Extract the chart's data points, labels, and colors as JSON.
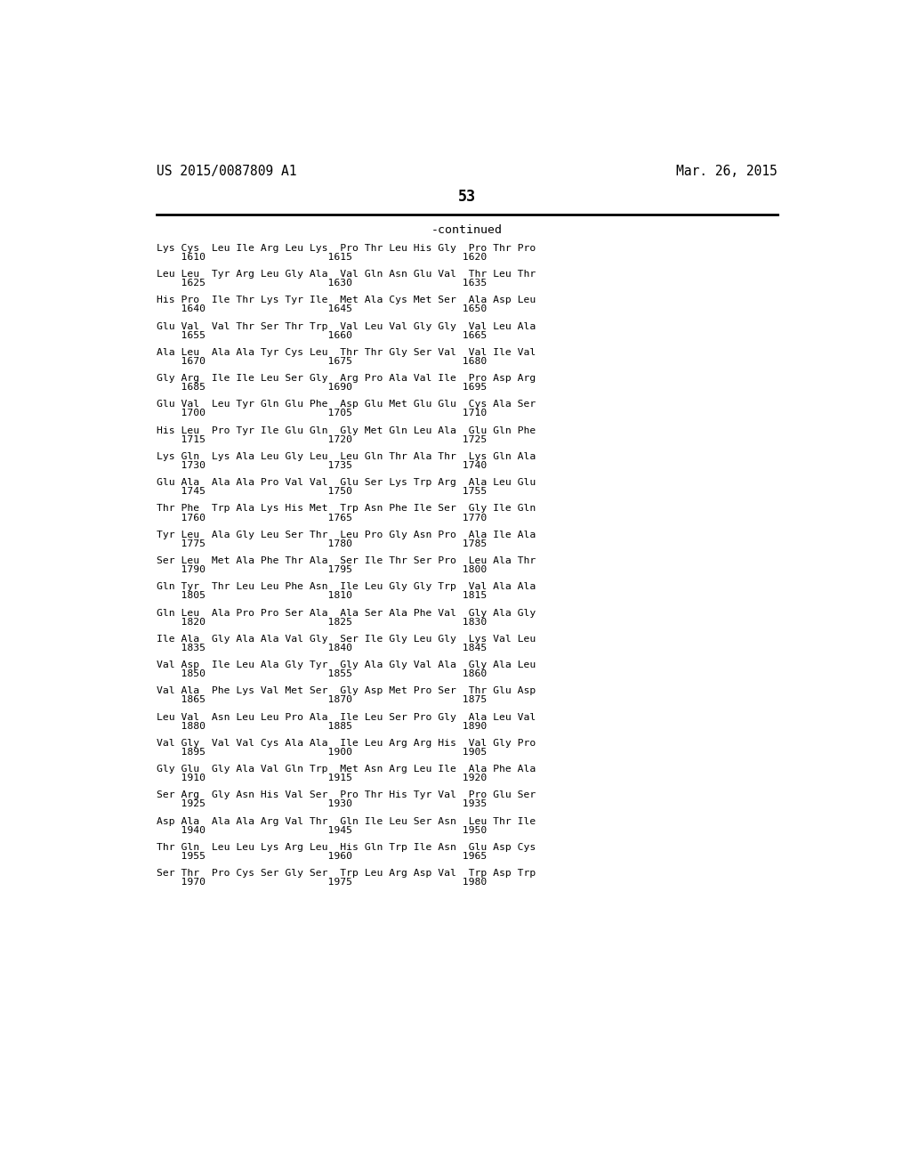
{
  "header_left": "US 2015/0087809 A1",
  "header_right": "Mar. 26, 2015",
  "page_number": "53",
  "continued_text": "-continued",
  "background_color": "#ffffff",
  "text_color": "#000000",
  "lines": [
    [
      "Lys Cys  Leu Ile Arg Leu Lys  Pro Thr Leu His Gly  Pro Thr Pro",
      "    1610                    1615                  1620"
    ],
    [
      "Leu Leu  Tyr Arg Leu Gly Ala  Val Gln Asn Glu Val  Thr Leu Thr",
      "    1625                    1630                  1635"
    ],
    [
      "His Pro  Ile Thr Lys Tyr Ile  Met Ala Cys Met Ser  Ala Asp Leu",
      "    1640                    1645                  1650"
    ],
    [
      "Glu Val  Val Thr Ser Thr Trp  Val Leu Val Gly Gly  Val Leu Ala",
      "    1655                    1660                  1665"
    ],
    [
      "Ala Leu  Ala Ala Tyr Cys Leu  Thr Thr Gly Ser Val  Val Ile Val",
      "    1670                    1675                  1680"
    ],
    [
      "Gly Arg  Ile Ile Leu Ser Gly  Arg Pro Ala Val Ile  Pro Asp Arg",
      "    1685                    1690                  1695"
    ],
    [
      "Glu Val  Leu Tyr Gln Glu Phe  Asp Glu Met Glu Glu  Cys Ala Ser",
      "    1700                    1705                  1710"
    ],
    [
      "His Leu  Pro Tyr Ile Glu Gln  Gly Met Gln Leu Ala  Glu Gln Phe",
      "    1715                    1720                  1725"
    ],
    [
      "Lys Gln  Lys Ala Leu Gly Leu  Leu Gln Thr Ala Thr  Lys Gln Ala",
      "    1730                    1735                  1740"
    ],
    [
      "Glu Ala  Ala Ala Pro Val Val  Glu Ser Lys Trp Arg  Ala Leu Glu",
      "    1745                    1750                  1755"
    ],
    [
      "Thr Phe  Trp Ala Lys His Met  Trp Asn Phe Ile Ser  Gly Ile Gln",
      "    1760                    1765                  1770"
    ],
    [
      "Tyr Leu  Ala Gly Leu Ser Thr  Leu Pro Gly Asn Pro  Ala Ile Ala",
      "    1775                    1780                  1785"
    ],
    [
      "Ser Leu  Met Ala Phe Thr Ala  Ser Ile Thr Ser Pro  Leu Ala Thr",
      "    1790                    1795                  1800"
    ],
    [
      "Gln Tyr  Thr Leu Leu Phe Asn  Ile Leu Gly Gly Trp  Val Ala Ala",
      "    1805                    1810                  1815"
    ],
    [
      "Gln Leu  Ala Pro Pro Ser Ala  Ala Ser Ala Phe Val  Gly Ala Gly",
      "    1820                    1825                  1830"
    ],
    [
      "Ile Ala  Gly Ala Ala Val Gly  Ser Ile Gly Leu Gly  Lys Val Leu",
      "    1835                    1840                  1845"
    ],
    [
      "Val Asp  Ile Leu Ala Gly Tyr  Gly Ala Gly Val Ala  Gly Ala Leu",
      "    1850                    1855                  1860"
    ],
    [
      "Val Ala  Phe Lys Val Met Ser  Gly Asp Met Pro Ser  Thr Glu Asp",
      "    1865                    1870                  1875"
    ],
    [
      "Leu Val  Asn Leu Leu Pro Ala  Ile Leu Ser Pro Gly  Ala Leu Val",
      "    1880                    1885                  1890"
    ],
    [
      "Val Gly  Val Val Cys Ala Ala  Ile Leu Arg Arg His  Val Gly Pro",
      "    1895                    1900                  1905"
    ],
    [
      "Gly Glu  Gly Ala Val Gln Trp  Met Asn Arg Leu Ile  Ala Phe Ala",
      "    1910                    1915                  1920"
    ],
    [
      "Ser Arg  Gly Asn His Val Ser  Pro Thr His Tyr Val  Pro Glu Ser",
      "    1925                    1930                  1935"
    ],
    [
      "Asp Ala  Ala Ala Arg Val Thr  Gln Ile Leu Ser Asn  Leu Thr Ile",
      "    1940                    1945                  1950"
    ],
    [
      "Thr Gln  Leu Leu Lys Arg Leu  His Gln Trp Ile Asn  Glu Asp Cys",
      "    1955                    1960                  1965"
    ],
    [
      "Ser Thr  Pro Cys Ser Gly Ser  Trp Leu Arg Asp Val  Trp Asp Trp",
      "    1970                    1975                  1980"
    ]
  ]
}
